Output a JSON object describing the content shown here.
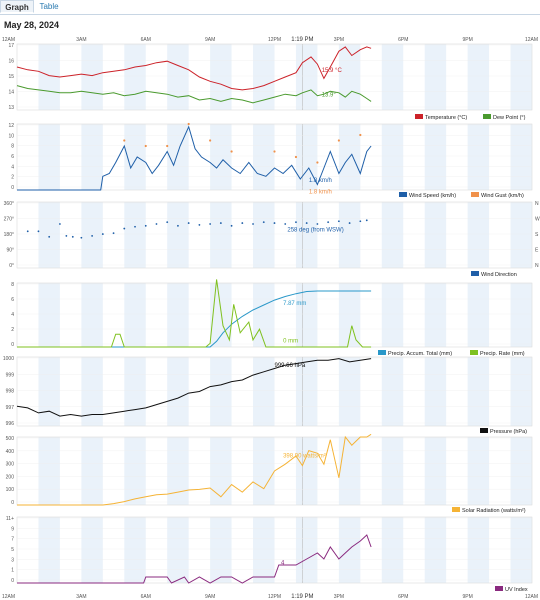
{
  "tabs": [
    {
      "label": "Graph",
      "active": true
    },
    {
      "label": "Table",
      "active": false
    }
  ],
  "date": "May 28, 2024",
  "now_label": "1:19 PM",
  "x_ticks": [
    "12AM",
    "3AM",
    "6AM",
    "9AM",
    "12PM",
    "3PM",
    "6PM",
    "9PM",
    "12AM"
  ],
  "colors": {
    "temperature": "#cc2229",
    "dew_point": "#4a9a2e",
    "wind_speed": "#1f5fa8",
    "wind_gust": "#f0914a",
    "wind_direction": "#1f5fa8",
    "precip_accum": "#2a98c9",
    "precip_rate": "#7fc11f",
    "pressure": "#111111",
    "solar": "#f5b335",
    "uv": "#8a2a7f",
    "band": "#eaf2fa"
  },
  "chart_data": [
    {
      "type": "line",
      "name": "temperature",
      "y_ticks": [
        "17",
        "16",
        "15",
        "14",
        "13"
      ],
      "ylim": [
        12.6,
        17.2
      ],
      "series": [
        {
          "name": "Temperature (°C)",
          "x_hours": [
            0,
            0.5,
            1,
            1.5,
            2,
            2.5,
            3,
            3.5,
            4,
            4.5,
            5,
            5.5,
            6,
            6.5,
            7,
            7.5,
            8,
            8.5,
            9,
            9.5,
            10,
            10.5,
            11,
            11.5,
            12,
            12.5,
            13,
            13.3,
            13.7,
            14,
            14.3,
            14.6,
            15,
            15.3,
            15.6,
            16,
            16.3,
            16.5
          ],
          "values": [
            15.6,
            15.4,
            15.3,
            15.0,
            14.9,
            15.0,
            15.1,
            15.0,
            15.2,
            15.3,
            15.4,
            15.6,
            15.7,
            15.9,
            16.0,
            15.7,
            15.4,
            14.9,
            14.6,
            14.4,
            14.1,
            14.0,
            14.1,
            14.3,
            14.6,
            14.9,
            15.2,
            15.9,
            16.3,
            15.8,
            14.8,
            15.6,
            16.7,
            17.0,
            16.4,
            16.8,
            17.0,
            16.9
          ]
        },
        {
          "name": "Dew Point (°)",
          "x_hours": [
            0,
            0.5,
            1,
            1.5,
            2,
            2.5,
            3,
            3.5,
            4,
            4.5,
            5,
            5.5,
            6,
            6.5,
            7,
            7.5,
            8,
            8.5,
            9,
            9.5,
            10,
            10.5,
            11,
            11.5,
            12,
            12.5,
            13,
            13.3,
            13.7,
            14,
            14.3,
            14.6,
            15,
            15.3,
            15.6,
            16,
            16.3,
            16.5
          ],
          "values": [
            14.3,
            14.1,
            14.0,
            13.9,
            13.8,
            13.8,
            13.9,
            13.8,
            13.7,
            13.8,
            13.6,
            13.7,
            13.9,
            13.8,
            13.7,
            13.5,
            13.6,
            13.3,
            13.4,
            13.2,
            13.4,
            13.3,
            13.1,
            13.3,
            13.5,
            13.7,
            13.6,
            13.8,
            14.0,
            13.6,
            13.7,
            13.9,
            13.8,
            13.5,
            13.9,
            13.7,
            13.4,
            13.2
          ]
        }
      ],
      "annotations": [
        "15.9 °C",
        "13.9°"
      ]
    },
    {
      "type": "line",
      "name": "wind",
      "y_ticks": [
        "12",
        "10",
        "8",
        "6",
        "4",
        "2",
        "0"
      ],
      "ylim": [
        0,
        12
      ],
      "series": [
        {
          "name": "Wind Speed (km/h)",
          "x_hours": [
            0,
            1,
            2,
            3,
            3.9,
            4,
            4.3,
            4.6,
            5,
            5.3,
            5.6,
            6,
            6.3,
            6.6,
            7,
            7.3,
            7.6,
            8,
            8.3,
            8.6,
            9,
            9.3,
            9.6,
            10,
            10.4,
            10.8,
            11.2,
            11.6,
            12,
            12.4,
            12.8,
            13.2,
            13.6,
            14,
            14.3,
            14.6,
            15,
            15.3,
            15.6,
            16,
            16.3,
            16.5
          ],
          "values": [
            0,
            0,
            0,
            0,
            0,
            2.5,
            3,
            5,
            8,
            4,
            6,
            5,
            3,
            4.5,
            7,
            4.5,
            8,
            11.5,
            7.5,
            6,
            5,
            4,
            5.5,
            4,
            3,
            5,
            3,
            2.5,
            4,
            3,
            4.5,
            2,
            4,
            1,
            4,
            7,
            3,
            5,
            6.5,
            3,
            7,
            8
          ]
        },
        {
          "name": "Wind Gust (km/h)",
          "x_hours": [
            5,
            6,
            7,
            8,
            9,
            10,
            12,
            13,
            14,
            15,
            16
          ],
          "values": [
            9,
            8,
            8,
            12,
            9,
            7,
            7,
            6,
            5,
            9,
            10
          ]
        }
      ],
      "annotations": [
        "1.8 km/h",
        "1.8 km/h"
      ]
    },
    {
      "type": "scatter",
      "name": "wind_direction",
      "y_ticks": [
        "360°",
        "270°",
        "180°",
        "90°",
        "0°"
      ],
      "right_ticks": [
        "N",
        "W",
        "S",
        "E",
        "N"
      ],
      "ylim": [
        0,
        360
      ],
      "series": [
        {
          "name": "Wind Direction",
          "x_hours": [
            0.5,
            1,
            1.5,
            2,
            2.3,
            2.6,
            3,
            3.5,
            4,
            4.5,
            5,
            5.5,
            6,
            6.5,
            7,
            7.5,
            8,
            8.5,
            9,
            9.5,
            10,
            10.5,
            11,
            11.5,
            12,
            12.5,
            13,
            13.5,
            14,
            14.5,
            15,
            15.5,
            16,
            16.3
          ],
          "values": [
            200,
            200,
            170,
            240,
            175,
            170,
            165,
            175,
            185,
            190,
            215,
            225,
            230,
            240,
            250,
            230,
            245,
            235,
            240,
            245,
            230,
            245,
            240,
            250,
            245,
            240,
            250,
            245,
            240,
            250,
            255,
            245,
            255,
            260
          ]
        }
      ],
      "annotations": [
        "258 deg (from WSW)"
      ]
    },
    {
      "type": "line",
      "name": "precip",
      "y_ticks": [
        "8",
        "6",
        "4",
        "2",
        "0"
      ],
      "ylim": [
        0,
        9
      ],
      "series": [
        {
          "name": "Precip. Accum. Total (mm)",
          "x_hours": [
            0,
            9,
            9.3,
            9.6,
            10,
            10.5,
            11,
            11.5,
            12,
            12.5,
            13,
            13.5,
            14,
            16.5
          ],
          "values": [
            0,
            0,
            0.8,
            2,
            3.2,
            4.3,
            5.2,
            5.9,
            6.6,
            7.1,
            7.5,
            7.8,
            7.87,
            7.87
          ]
        },
        {
          "name": "Precip. Rate (mm)",
          "x_hours": [
            0,
            4.4,
            4.6,
            4.8,
            5,
            8.8,
            9,
            9.3,
            9.6,
            9.9,
            10.1,
            10.4,
            10.8,
            11.0,
            11.3,
            11.6,
            12,
            15.4,
            15.6,
            15.8,
            16.1,
            16.5
          ],
          "values": [
            0,
            0,
            1.8,
            1.8,
            0,
            0,
            0.5,
            9.5,
            3,
            1,
            6,
            2,
            3.5,
            1,
            2.5,
            0,
            0,
            0,
            3,
            1,
            0,
            0
          ]
        }
      ],
      "annotations": [
        "7.87 mm",
        "0 mm"
      ]
    },
    {
      "type": "line",
      "name": "pressure",
      "y_ticks": [
        "1000",
        "999",
        "998",
        "997",
        "996"
      ],
      "ylim": [
        995.8,
        1000
      ],
      "series": [
        {
          "name": "Pressure (hPa)",
          "x_hours": [
            0,
            0.5,
            1,
            1.5,
            2,
            2.5,
            3,
            3.5,
            4,
            4.5,
            5,
            5.5,
            6,
            6.5,
            7,
            7.5,
            8,
            8.5,
            9,
            9.5,
            10,
            10.5,
            11,
            11.5,
            12,
            12.5,
            13,
            13.5,
            14,
            14.5,
            15,
            15.5,
            16,
            16.5
          ],
          "values": [
            997,
            996.9,
            996.6,
            996.7,
            996.4,
            996.5,
            996.4,
            996.5,
            996.5,
            996.6,
            996.7,
            996.8,
            996.9,
            997.1,
            997.3,
            997.5,
            997.8,
            997.9,
            998.2,
            998.3,
            998.5,
            998.6,
            998.9,
            999.1,
            999.3,
            999.5,
            999.6,
            999.7,
            999.8,
            999.8,
            999.9,
            999.7,
            999.8,
            999.9
          ]
        }
      ],
      "annotations": [
        "999.66 hPa"
      ]
    },
    {
      "type": "line",
      "name": "solar",
      "y_ticks": [
        "500",
        "400",
        "300",
        "200",
        "100",
        "0"
      ],
      "ylim": [
        0,
        500
      ],
      "series": [
        {
          "name": "Solar Radiation (watts/m²)",
          "x_hours": [
            0,
            4,
            4.5,
            5,
            5.5,
            6,
            6.5,
            7,
            7.5,
            8,
            8.5,
            9,
            9.5,
            10,
            10.5,
            11,
            11.5,
            12,
            12.5,
            13,
            13.3,
            13.6,
            14,
            14.3,
            14.6,
            15,
            15.3,
            15.6,
            16,
            16.3,
            16.5
          ],
          "values": [
            0,
            0,
            10,
            25,
            45,
            60,
            75,
            80,
            95,
            110,
            115,
            125,
            60,
            150,
            95,
            170,
            120,
            250,
            300,
            360,
            290,
            400,
            380,
            300,
            480,
            200,
            500,
            440,
            500,
            500,
            520
          ]
        }
      ],
      "annotations": [
        "398.90 watts/m²"
      ]
    },
    {
      "type": "line",
      "name": "uv",
      "y_ticks": [
        "11+",
        "9",
        "7",
        "5",
        "3",
        "1",
        "0"
      ],
      "ylim": [
        0,
        11
      ],
      "series": [
        {
          "name": "UV Index",
          "x_hours": [
            0,
            5.9,
            6,
            7,
            7.2,
            7.8,
            8,
            8.5,
            9,
            9.5,
            10,
            10.5,
            11,
            11.5,
            12,
            12.2,
            13,
            13.5,
            14,
            14.3,
            14.6,
            15,
            15.3,
            15.6,
            16,
            16.3,
            16.5
          ],
          "values": [
            0,
            0,
            1,
            1,
            0,
            1,
            0,
            1,
            0,
            1,
            1,
            0,
            1,
            1,
            1,
            3,
            3,
            4,
            5,
            4,
            6,
            4,
            5,
            6,
            7,
            8,
            6
          ]
        }
      ],
      "annotations": [
        "4"
      ]
    }
  ]
}
